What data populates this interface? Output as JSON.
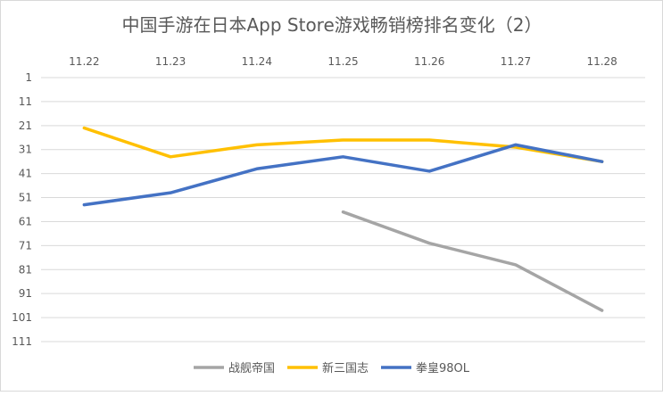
{
  "chart_data": {
    "type": "line",
    "title": "中国手游在日本App Store游戏畅销榜排名变化（2）",
    "categories": [
      "11.22",
      "11.23",
      "11.24",
      "11.25",
      "11.26",
      "11.27",
      "11.28"
    ],
    "yticks": [
      1,
      11,
      21,
      31,
      41,
      51,
      61,
      71,
      81,
      91,
      101,
      111
    ],
    "ylim": [
      1,
      111
    ],
    "y_reversed": true,
    "xaxis_position": "top",
    "grid": true,
    "legend_position": "bottom",
    "series": [
      {
        "name": "战舰帝国",
        "color": "#a5a5a5",
        "values": [
          null,
          null,
          null,
          57,
          70,
          79,
          98
        ]
      },
      {
        "name": "新三国志",
        "color": "#ffc000",
        "values": [
          22,
          34,
          29,
          27,
          27,
          30,
          36
        ]
      },
      {
        "name": "拳皇98OL",
        "color": "#4472c4",
        "values": [
          54,
          49,
          39,
          34,
          40,
          29,
          36
        ]
      }
    ]
  }
}
